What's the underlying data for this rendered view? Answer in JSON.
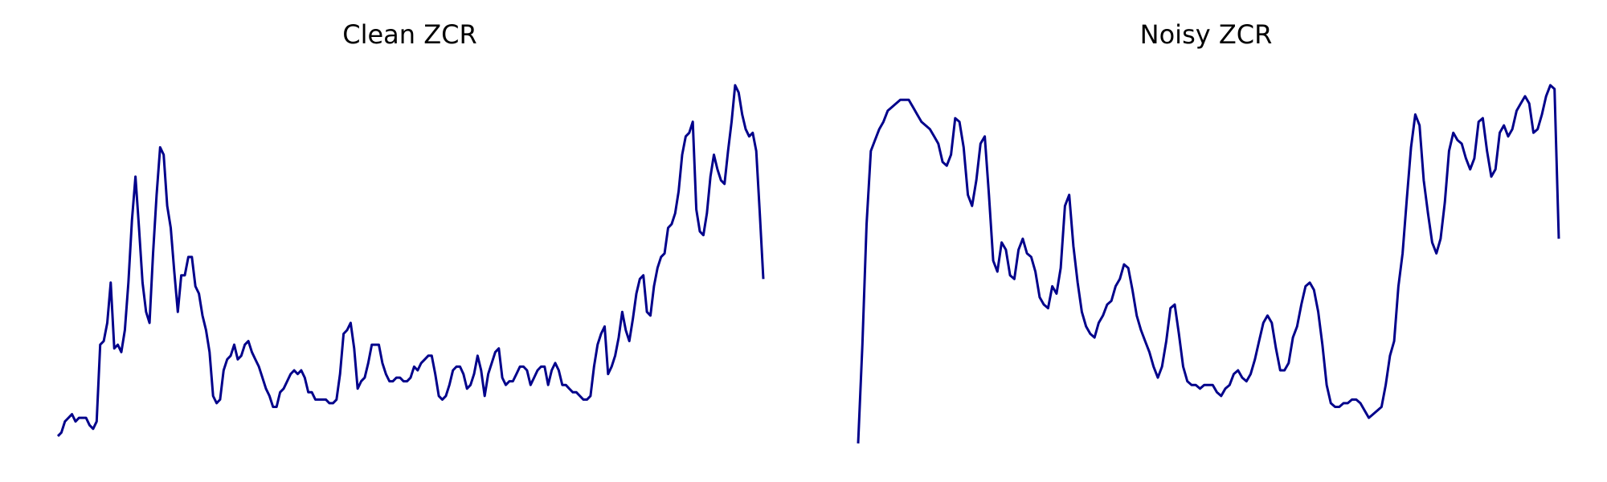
{
  "chart_data": [
    {
      "type": "line",
      "title": "Clean ZCR",
      "xlabel": "",
      "ylabel": "",
      "axes": "off",
      "grid": false,
      "color": "#00008b",
      "ylim": [
        0,
        1
      ],
      "values": [
        0.02,
        0.03,
        0.06,
        0.07,
        0.08,
        0.06,
        0.07,
        0.07,
        0.07,
        0.05,
        0.04,
        0.06,
        0.27,
        0.28,
        0.33,
        0.44,
        0.26,
        0.27,
        0.25,
        0.31,
        0.44,
        0.61,
        0.73,
        0.59,
        0.44,
        0.36,
        0.33,
        0.52,
        0.68,
        0.81,
        0.79,
        0.65,
        0.59,
        0.47,
        0.36,
        0.46,
        0.46,
        0.51,
        0.51,
        0.43,
        0.41,
        0.35,
        0.31,
        0.25,
        0.13,
        0.11,
        0.12,
        0.2,
        0.23,
        0.24,
        0.27,
        0.23,
        0.24,
        0.27,
        0.28,
        0.25,
        0.23,
        0.21,
        0.18,
        0.15,
        0.13,
        0.1,
        0.1,
        0.14,
        0.15,
        0.17,
        0.19,
        0.2,
        0.19,
        0.2,
        0.18,
        0.14,
        0.14,
        0.12,
        0.12,
        0.12,
        0.12,
        0.11,
        0.11,
        0.12,
        0.19,
        0.3,
        0.31,
        0.33,
        0.26,
        0.15,
        0.17,
        0.18,
        0.22,
        0.27,
        0.27,
        0.27,
        0.22,
        0.19,
        0.17,
        0.17,
        0.18,
        0.18,
        0.17,
        0.17,
        0.18,
        0.21,
        0.2,
        0.22,
        0.23,
        0.24,
        0.24,
        0.19,
        0.13,
        0.12,
        0.13,
        0.16,
        0.2,
        0.21,
        0.21,
        0.19,
        0.15,
        0.16,
        0.19,
        0.24,
        0.2,
        0.13,
        0.19,
        0.22,
        0.25,
        0.26,
        0.18,
        0.16,
        0.17,
        0.17,
        0.19,
        0.21,
        0.21,
        0.2,
        0.16,
        0.18,
        0.2,
        0.21,
        0.21,
        0.16,
        0.2,
        0.22,
        0.2,
        0.16,
        0.16,
        0.15,
        0.14,
        0.14,
        0.13,
        0.12,
        0.12,
        0.13,
        0.21,
        0.27,
        0.3,
        0.32,
        0.19,
        0.21,
        0.24,
        0.29,
        0.36,
        0.31,
        0.28,
        0.34,
        0.41,
        0.45,
        0.46,
        0.36,
        0.35,
        0.43,
        0.48,
        0.51,
        0.52,
        0.59,
        0.6,
        0.63,
        0.69,
        0.79,
        0.84,
        0.85,
        0.88,
        0.64,
        0.58,
        0.57,
        0.63,
        0.73,
        0.79,
        0.75,
        0.72,
        0.71,
        0.8,
        0.88,
        0.98,
        0.96,
        0.9,
        0.86,
        0.84,
        0.85,
        0.8,
        0.63,
        0.45
      ],
      "x_start": 0,
      "x_end": 199
    },
    {
      "type": "line",
      "title": "Noisy ZCR",
      "xlabel": "",
      "ylabel": "",
      "axes": "off",
      "grid": false,
      "color": "#00008b",
      "ylim": [
        0,
        1
      ],
      "values": [
        0.0,
        0.27,
        0.6,
        0.8,
        0.83,
        0.86,
        0.88,
        0.91,
        0.92,
        0.93,
        0.94,
        0.94,
        0.94,
        0.92,
        0.9,
        0.88,
        0.87,
        0.86,
        0.84,
        0.82,
        0.77,
        0.76,
        0.79,
        0.89,
        0.88,
        0.81,
        0.68,
        0.65,
        0.72,
        0.82,
        0.84,
        0.68,
        0.5,
        0.47,
        0.55,
        0.53,
        0.46,
        0.45,
        0.53,
        0.56,
        0.52,
        0.51,
        0.47,
        0.4,
        0.38,
        0.37,
        0.43,
        0.41,
        0.48,
        0.65,
        0.68,
        0.54,
        0.44,
        0.36,
        0.32,
        0.3,
        0.29,
        0.33,
        0.35,
        0.38,
        0.39,
        0.43,
        0.45,
        0.49,
        0.48,
        0.42,
        0.35,
        0.31,
        0.28,
        0.25,
        0.21,
        0.18,
        0.21,
        0.28,
        0.37,
        0.38,
        0.3,
        0.21,
        0.17,
        0.16,
        0.16,
        0.15,
        0.16,
        0.16,
        0.16,
        0.14,
        0.13,
        0.15,
        0.16,
        0.19,
        0.2,
        0.18,
        0.17,
        0.19,
        0.23,
        0.28,
        0.33,
        0.35,
        0.33,
        0.26,
        0.2,
        0.2,
        0.22,
        0.29,
        0.32,
        0.38,
        0.43,
        0.44,
        0.42,
        0.36,
        0.27,
        0.16,
        0.11,
        0.1,
        0.1,
        0.11,
        0.11,
        0.12,
        0.12,
        0.11,
        0.09,
        0.07,
        0.08,
        0.09,
        0.1,
        0.16,
        0.24,
        0.28,
        0.43,
        0.52,
        0.67,
        0.81,
        0.9,
        0.87,
        0.72,
        0.63,
        0.55,
        0.52,
        0.56,
        0.66,
        0.8,
        0.85,
        0.83,
        0.82,
        0.78,
        0.75,
        0.78,
        0.88,
        0.89,
        0.8,
        0.73,
        0.75,
        0.85,
        0.87,
        0.84,
        0.86,
        0.91,
        0.93,
        0.95,
        0.93,
        0.85,
        0.86,
        0.9,
        0.95,
        0.98,
        0.97,
        0.56
      ],
      "x_start": 0,
      "x_end": 199
    }
  ]
}
